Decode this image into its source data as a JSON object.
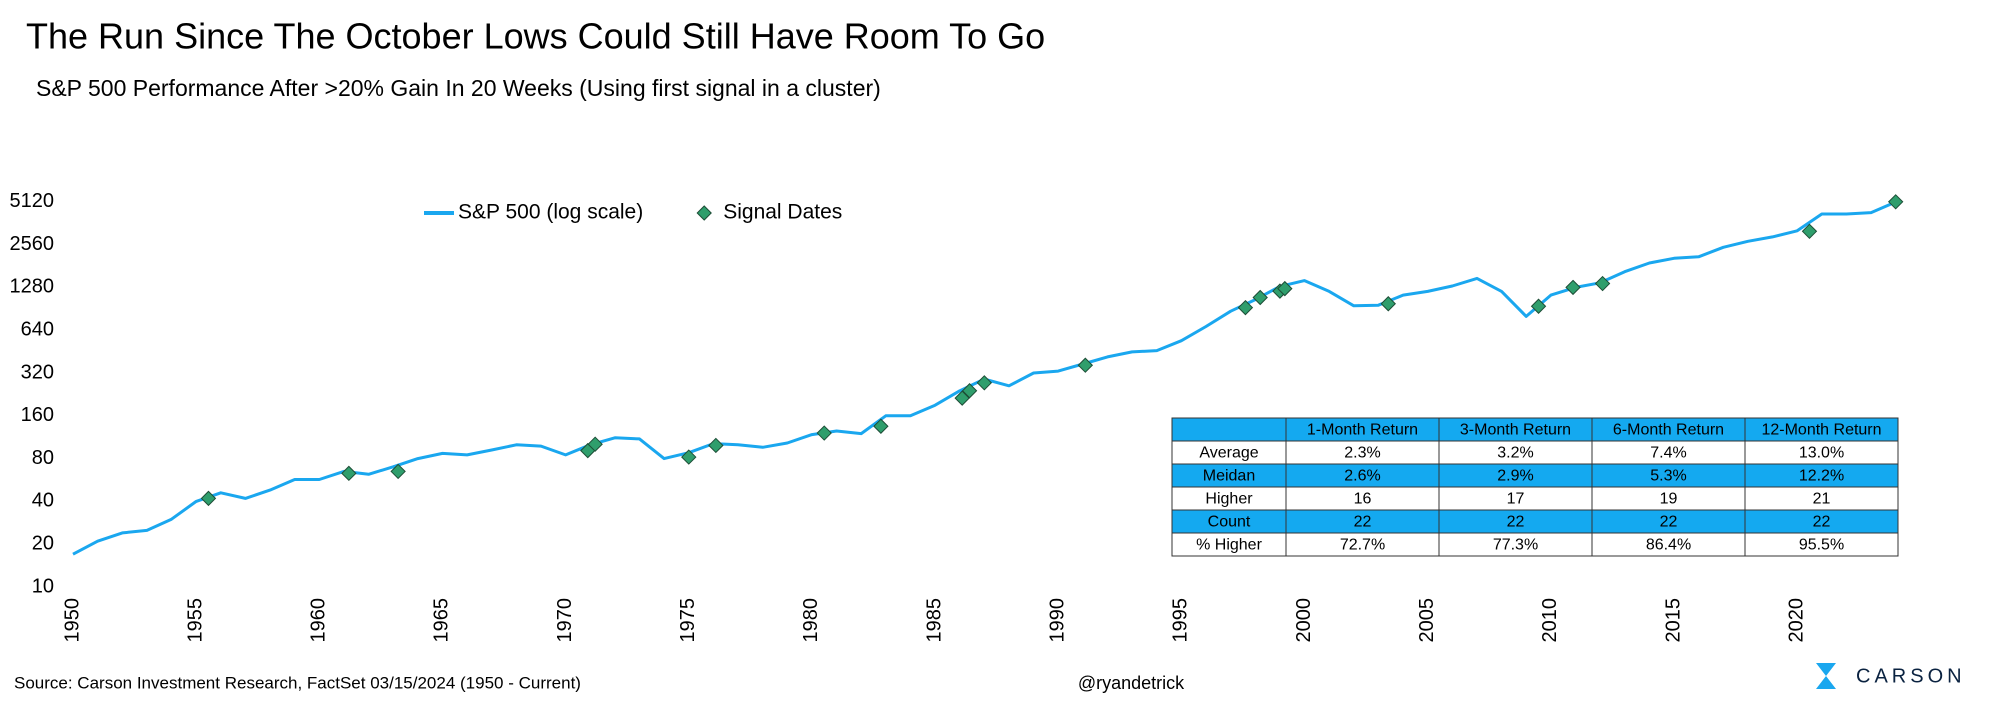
{
  "chart_data": {
    "type": "line",
    "title": "The Run Since The October Lows Could Still Have Room To Go",
    "subtitle": "S&P 500 Performance After >20% Gain In 20 Weeks (Using first signal in a cluster)",
    "log_scale": true,
    "grid": false,
    "legend": "top",
    "xlim": [
      1950,
      2024.5
    ],
    "xticks": [
      1950,
      1955,
      1960,
      1965,
      1970,
      1975,
      1980,
      1985,
      1990,
      1995,
      2000,
      2005,
      2010,
      2015,
      2020
    ],
    "ylim": [
      10,
      6000
    ],
    "yticks": [
      10,
      20,
      40,
      80,
      160,
      320,
      640,
      1280,
      2560,
      5120
    ],
    "series": [
      {
        "name": "S&P 500 (log scale)",
        "color": "#1aa7ef",
        "x": [
          1950,
          1951,
          1952,
          1953,
          1954,
          1955,
          1956,
          1957,
          1958,
          1959,
          1960,
          1961,
          1962,
          1963,
          1964,
          1965,
          1966,
          1967,
          1968,
          1969,
          1970,
          1971,
          1972,
          1973,
          1974,
          1975,
          1976,
          1977,
          1978,
          1979,
          1980,
          1981,
          1982,
          1983,
          1984,
          1985,
          1986,
          1987,
          1988,
          1989,
          1990,
          1991,
          1992,
          1993,
          1994,
          1995,
          1996,
          1997,
          1998,
          1999,
          2000,
          2001,
          2002,
          2003,
          2004,
          2005,
          2006,
          2007,
          2008,
          2009,
          2010,
          2011,
          2012,
          2013,
          2014,
          2015,
          2016,
          2017,
          2018,
          2019,
          2020,
          2021,
          2022,
          2023,
          2024
        ],
        "values": [
          17,
          21,
          24,
          25,
          30,
          40,
          46,
          42,
          48,
          57,
          57,
          65,
          62,
          70,
          80,
          87,
          85,
          92,
          100,
          98,
          85,
          100,
          112,
          110,
          80,
          88,
          102,
          100,
          96,
          103,
          118,
          125,
          120,
          160,
          160,
          190,
          240,
          290,
          260,
          320,
          330,
          370,
          415,
          450,
          460,
          540,
          680,
          870,
          1050,
          1300,
          1430,
          1200,
          950,
          960,
          1130,
          1200,
          1310,
          1480,
          1200,
          800,
          1130,
          1280,
          1380,
          1650,
          1900,
          2050,
          2100,
          2450,
          2700,
          2900,
          3200,
          4200,
          4200,
          4300,
          5100
        ]
      },
      {
        "name": "Signal Dates",
        "type": "scatter",
        "color": "#2f9e6c",
        "x": [
          1955.5,
          1961.2,
          1963.2,
          1970.9,
          1971.2,
          1975.0,
          1976.1,
          1980.5,
          1982.8,
          1986.1,
          1986.4,
          1987.0,
          1991.1,
          1997.6,
          1998.2,
          1999.0,
          1999.2,
          2003.4,
          2009.5,
          2010.9,
          2012.1,
          2020.5,
          2024.0
        ],
        "values": [
          42,
          63,
          65,
          91,
          101,
          82,
          99,
          121,
          135,
          213,
          240,
          273,
          363,
          922,
          1087,
          1205,
          1255,
          982,
          943,
          1280,
          1362,
          3175,
          5120
        ]
      }
    ]
  },
  "table": {
    "header": [
      "1-Month Return",
      "3-Month Return",
      "6-Month Return",
      "12-Month Return"
    ],
    "rows": [
      [
        "Average",
        "2.3%",
        "3.2%",
        "7.4%",
        "13.0%"
      ],
      [
        "Meidan",
        "2.6%",
        "2.9%",
        "5.3%",
        "12.2%"
      ],
      [
        "Higher",
        "16",
        "17",
        "19",
        "21"
      ],
      [
        "Count",
        "22",
        "22",
        "22",
        "22"
      ],
      [
        "% Higher",
        "72.7%",
        "77.3%",
        "86.4%",
        "95.5%"
      ]
    ]
  },
  "footer": {
    "source": "Source: Carson Investment Research, FactSet 03/15/2024 (1950 - Current)",
    "handle": "@ryandetrick",
    "logo": "CARSON"
  }
}
